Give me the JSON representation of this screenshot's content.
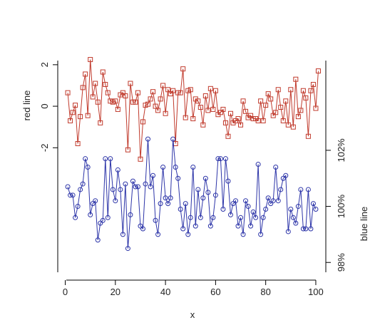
{
  "chart_data": {
    "type": "line",
    "xlabel": "x",
    "x_ticks": [
      0,
      20,
      40,
      60,
      80,
      100
    ],
    "xlim": [
      -3,
      104
    ],
    "series": [
      {
        "name": "red line",
        "axis": "left",
        "ylabel": "red line",
        "color": "#c0392b",
        "marker": "square",
        "y_ticks": [
          -2,
          0,
          2
        ],
        "ylim": [
          -8.0,
          2.2
        ],
        "values": [
          0.65,
          -0.7,
          -0.3,
          0.05,
          -1.8,
          -0.5,
          0.9,
          1.55,
          -0.45,
          2.25,
          0.45,
          1.1,
          0.2,
          -0.8,
          1.65,
          1.05,
          0.65,
          0.25,
          0.2,
          0.25,
          -0.15,
          0.55,
          0.65,
          0.5,
          -2.1,
          1.1,
          0.2,
          0.2,
          0.65,
          -2.55,
          -0.75,
          0.05,
          0.1,
          0.35,
          0.7,
          0.0,
          -0.2,
          0.35,
          1.0,
          -0.35,
          0.8,
          0.6,
          0.75,
          -1.8,
          0.65,
          0.65,
          1.8,
          -0.55,
          0.75,
          0.8,
          -0.6,
          0.35,
          0.25,
          -0.05,
          -0.9,
          0.5,
          -0.2,
          0.85,
          -0.15,
          0.75,
          -0.4,
          -0.3,
          -0.15,
          -0.8,
          -1.45,
          -0.35,
          -0.8,
          -0.7,
          -0.6,
          -0.9,
          0.25,
          -0.25,
          -0.55,
          -0.45,
          -0.6,
          -0.6,
          -0.7,
          0.25,
          -0.7,
          0.05,
          0.6,
          0.35,
          -0.45,
          -0.3,
          0.8,
          -0.05,
          -0.7,
          0.25,
          -0.9,
          0.8,
          -1.0,
          1.3,
          -0.5,
          -0.2,
          0.75,
          0.4,
          -1.45,
          0.75,
          1.05,
          -0.1,
          1.7
        ]
      },
      {
        "name": "blue line",
        "axis": "right",
        "ylabel": "blue line",
        "color": "#2c34a8",
        "marker": "circle",
        "y_ticks": [
          98,
          100,
          102
        ],
        "y_tick_labels": [
          "98%",
          "100%",
          "102%"
        ],
        "ylim": [
          97.65,
          105.2
        ],
        "values": [
          100.7,
          100.4,
          100.4,
          99.6,
          100.0,
          100.6,
          100.8,
          101.7,
          101.4,
          99.7,
          100.1,
          100.2,
          98.8,
          99.4,
          99.5,
          101.7,
          99.6,
          101.7,
          100.6,
          100.2,
          101.3,
          100.6,
          99.0,
          100.8,
          98.5,
          99.7,
          100.9,
          100.7,
          100.7,
          99.3,
          99.2,
          100.8,
          102.4,
          100.7,
          101.1,
          99.5,
          99.0,
          100.1,
          101.4,
          100.3,
          100.1,
          100.3,
          102.4,
          101.4,
          101.0,
          99.9,
          99.2,
          100.1,
          99.0,
          99.6,
          101.4,
          99.3,
          100.6,
          99.6,
          100.3,
          101.0,
          100.5,
          99.3,
          99.6,
          100.4,
          101.7,
          101.7,
          99.9,
          101.7,
          100.9,
          99.7,
          100.1,
          100.2,
          99.3,
          99.6,
          99.0,
          100.2,
          100.0,
          99.3,
          99.8,
          99.6,
          101.5,
          99.0,
          99.6,
          99.9,
          100.3,
          100.1,
          100.2,
          101.4,
          100.2,
          100.6,
          101.0,
          101.1,
          99.1,
          99.9,
          99.6,
          99.4,
          100.0,
          100.6,
          99.2,
          99.2,
          100.6,
          99.2,
          100.1,
          99.9
        ]
      }
    ]
  }
}
